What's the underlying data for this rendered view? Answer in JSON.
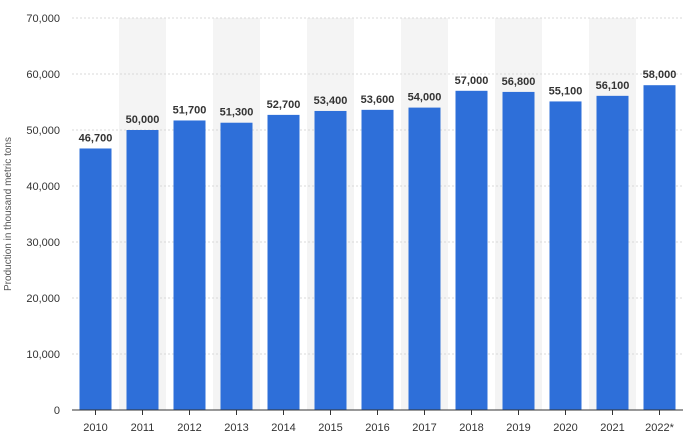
{
  "chart_data": {
    "type": "bar",
    "categories": [
      "2010",
      "2011",
      "2012",
      "2013",
      "2014",
      "2015",
      "2016",
      "2017",
      "2018",
      "2019",
      "2020",
      "2021",
      "2022*"
    ],
    "values": [
      46700,
      50000,
      51700,
      51300,
      52700,
      53400,
      53600,
      54000,
      57000,
      56800,
      55100,
      56100,
      58000
    ],
    "data_labels": [
      "46,700",
      "50,000",
      "51,700",
      "51,300",
      "52,700",
      "53,400",
      "53,600",
      "54,000",
      "57,000",
      "56,800",
      "55,100",
      "56,100",
      "58,000"
    ],
    "ylabel": "Production in thousand metric tons",
    "xlabel": "",
    "ylim": [
      0,
      70000
    ],
    "yticks": [
      0,
      10000,
      20000,
      30000,
      40000,
      50000,
      60000,
      70000
    ],
    "ytick_labels": [
      "0",
      "10,000",
      "20,000",
      "30,000",
      "40,000",
      "50,000",
      "60,000",
      "70,000"
    ],
    "grid": true,
    "alternating_column_bands": true,
    "colors": {
      "bar": "#2e6fd9",
      "band": "#f4f4f4",
      "grid": "#d9d9d9",
      "axis": "#333333",
      "text": "#333333"
    }
  }
}
